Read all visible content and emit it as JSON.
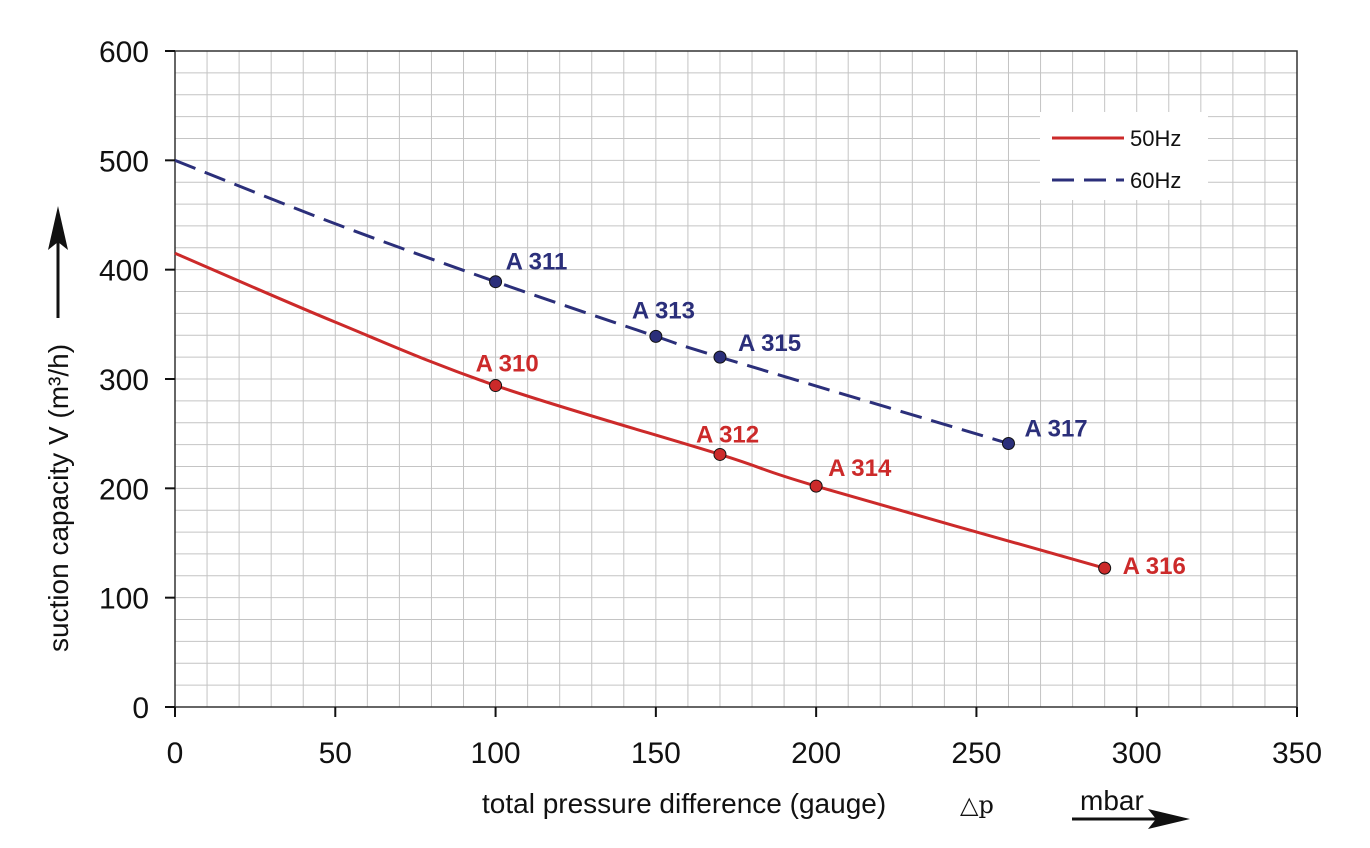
{
  "chart_data": {
    "type": "line",
    "title": "",
    "xlabel": "total pressure difference (gauge)",
    "xlabel_symbol": "△p",
    "xunit": "mbar",
    "ylabel": "suction capacity V (m³/h)",
    "xlim": [
      0,
      350
    ],
    "ylim": [
      0,
      600
    ],
    "x_ticks": [
      0,
      50,
      100,
      150,
      200,
      250,
      300,
      350
    ],
    "y_ticks": [
      0,
      100,
      200,
      300,
      400,
      500,
      600
    ],
    "grid": true,
    "legend_position": "top-right",
    "series": [
      {
        "name": "50Hz",
        "color": "#cc2a2a",
        "dash": "solid",
        "curve": [
          [
            0,
            415
          ],
          [
            50,
            352
          ],
          [
            100,
            294
          ],
          [
            170,
            231
          ],
          [
            200,
            202
          ],
          [
            290,
            127
          ]
        ],
        "points": [
          {
            "label": "A 310",
            "x": 100,
            "y": 294
          },
          {
            "label": "A 312",
            "x": 170,
            "y": 231
          },
          {
            "label": "A 314",
            "x": 200,
            "y": 202
          },
          {
            "label": "A 316",
            "x": 290,
            "y": 127
          }
        ]
      },
      {
        "name": "60Hz",
        "color": "#2b2f7a",
        "dash": "dashed",
        "curve": [
          [
            0,
            500
          ],
          [
            50,
            442
          ],
          [
            100,
            389
          ],
          [
            150,
            339
          ],
          [
            170,
            320
          ],
          [
            260,
            241
          ]
        ],
        "points": [
          {
            "label": "A 311",
            "x": 100,
            "y": 389
          },
          {
            "label": "A 313",
            "x": 150,
            "y": 339
          },
          {
            "label": "A 315",
            "x": 170,
            "y": 320
          },
          {
            "label": "A 317",
            "x": 260,
            "y": 241
          }
        ]
      }
    ]
  }
}
